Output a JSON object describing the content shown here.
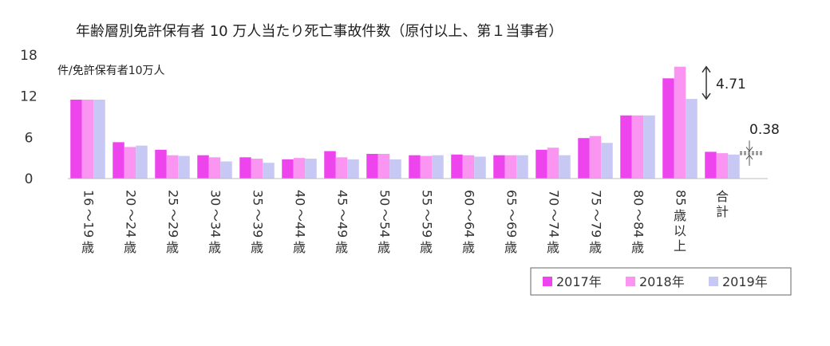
{
  "chart_data": {
    "type": "bar",
    "title": "年齢層別免許保有者 10 万人当たり死亡事故件数（原付以上、第１当事者）",
    "ylabel": "件/免許保有者10万人",
    "ylim": [
      0,
      18
    ],
    "yticks": [
      "0",
      "6",
      "12",
      "18"
    ],
    "grid": false,
    "legend_position": "bottom-right",
    "categories": [
      "16～19歳",
      "20～24歳",
      "25～29歳",
      "30～34歳",
      "35～39歳",
      "40～44歳",
      "45～49歳",
      "50～54歳",
      "55～59歳",
      "60～64歳",
      "65～69歳",
      "70～74歳",
      "75～79歳",
      "80～84歳",
      "85歳以上",
      "合計"
    ],
    "series": [
      {
        "name": "2017年",
        "color": "#ee44ee",
        "values": [
          11.5,
          5.3,
          4.2,
          3.4,
          3.1,
          2.8,
          4.0,
          3.6,
          3.4,
          3.5,
          3.4,
          4.2,
          5.9,
          9.2,
          14.6,
          3.9
        ]
      },
      {
        "name": "2018年",
        "color": "#fa96f2",
        "values": [
          11.5,
          4.6,
          3.4,
          3.1,
          2.9,
          3.0,
          3.1,
          3.6,
          3.3,
          3.4,
          3.4,
          4.5,
          6.2,
          9.2,
          16.3,
          3.7
        ]
      },
      {
        "name": "2019年",
        "color": "#c8c8f4",
        "values": [
          11.5,
          4.8,
          3.3,
          2.5,
          2.3,
          2.9,
          2.8,
          2.8,
          3.4,
          3.2,
          3.4,
          3.4,
          5.2,
          9.2,
          11.6,
          3.5
        ]
      }
    ],
    "annotations": [
      {
        "text": "4.71",
        "category": "85歳以上"
      },
      {
        "text": "0.38",
        "category": "合計"
      }
    ]
  }
}
